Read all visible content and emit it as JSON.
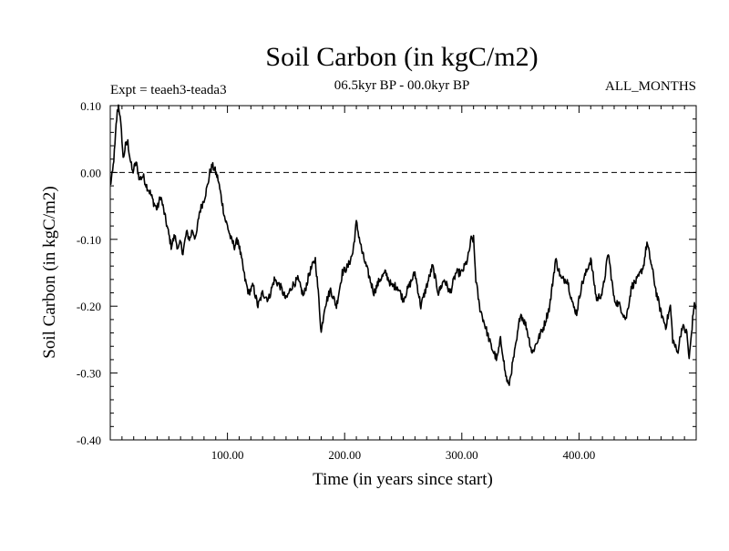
{
  "chart_data": {
    "type": "line",
    "title": "Soil Carbon (in kgC/m2)",
    "subtitle": "06.5kyr BP - 00.0kyr BP",
    "experiment": "Expt = teaeh3-teada3",
    "period": "ALL_MONTHS",
    "xlabel": "Time (in years since start)",
    "ylabel": "Soil Carbon (in kgC/m2)",
    "xlim": [
      0,
      500
    ],
    "ylim": [
      -0.4,
      0.1
    ],
    "xticks": [
      100,
      200,
      300,
      400
    ],
    "xtick_labels": [
      "100.00",
      "200.00",
      "300.00",
      "400.00"
    ],
    "yticks": [
      0.1,
      0.0,
      -0.1,
      -0.2,
      -0.3,
      -0.4
    ],
    "ytick_labels": [
      "0.10",
      "0.00",
      "-0.10",
      "-0.20",
      "-0.30",
      "-0.40"
    ],
    "reference_line": 0.0,
    "series": [
      {
        "name": "Soil Carbon",
        "x": [
          0,
          2,
          4,
          5,
          6,
          7,
          8,
          10,
          11,
          13,
          15,
          17,
          19,
          22,
          25,
          28,
          31,
          34,
          37,
          40,
          43,
          46,
          49,
          52,
          55,
          58,
          60,
          62,
          65,
          68,
          70,
          73,
          76,
          80,
          83,
          85,
          87,
          89,
          92,
          95,
          98,
          100,
          103,
          106,
          109,
          112,
          115,
          118,
          122,
          126,
          130,
          135,
          140,
          145,
          150,
          155,
          160,
          165,
          170,
          175,
          178,
          180,
          183,
          188,
          193,
          198,
          203,
          207,
          210,
          215,
          220,
          225,
          230,
          235,
          240,
          245,
          250,
          255,
          260,
          265,
          270,
          275,
          280,
          285,
          290,
          295,
          300,
          305,
          308,
          310,
          312,
          315,
          320,
          325,
          330,
          333,
          335,
          337,
          340,
          343,
          347,
          350,
          355,
          360,
          365,
          370,
          375,
          380,
          385,
          390,
          395,
          398,
          402,
          406,
          410,
          415,
          420,
          425,
          430,
          435,
          440,
          445,
          450,
          455,
          458,
          462,
          466,
          470,
          474,
          478,
          480,
          484,
          488,
          492,
          494,
          496,
          498,
          500
        ],
        "values": [
          -0.02,
          0.0,
          0.04,
          0.07,
          0.09,
          0.1,
          0.09,
          0.05,
          0.02,
          0.04,
          0.045,
          0.02,
          0.0,
          0.015,
          -0.01,
          -0.005,
          -0.02,
          -0.03,
          -0.045,
          -0.055,
          -0.035,
          -0.06,
          -0.085,
          -0.11,
          -0.095,
          -0.115,
          -0.105,
          -0.12,
          -0.09,
          -0.1,
          -0.085,
          -0.1,
          -0.06,
          -0.04,
          -0.02,
          -0.0,
          0.01,
          0.005,
          -0.01,
          -0.04,
          -0.07,
          -0.08,
          -0.1,
          -0.11,
          -0.1,
          -0.13,
          -0.16,
          -0.18,
          -0.17,
          -0.2,
          -0.18,
          -0.19,
          -0.16,
          -0.17,
          -0.19,
          -0.17,
          -0.16,
          -0.185,
          -0.15,
          -0.13,
          -0.19,
          -0.24,
          -0.2,
          -0.175,
          -0.2,
          -0.15,
          -0.14,
          -0.12,
          -0.075,
          -0.12,
          -0.15,
          -0.18,
          -0.16,
          -0.15,
          -0.17,
          -0.17,
          -0.19,
          -0.17,
          -0.15,
          -0.2,
          -0.17,
          -0.14,
          -0.18,
          -0.16,
          -0.18,
          -0.15,
          -0.15,
          -0.13,
          -0.1,
          -0.1,
          -0.16,
          -0.2,
          -0.23,
          -0.26,
          -0.28,
          -0.25,
          -0.27,
          -0.3,
          -0.32,
          -0.29,
          -0.25,
          -0.21,
          -0.23,
          -0.27,
          -0.25,
          -0.23,
          -0.2,
          -0.13,
          -0.16,
          -0.16,
          -0.2,
          -0.21,
          -0.17,
          -0.15,
          -0.13,
          -0.19,
          -0.18,
          -0.12,
          -0.19,
          -0.2,
          -0.22,
          -0.17,
          -0.16,
          -0.14,
          -0.105,
          -0.14,
          -0.18,
          -0.21,
          -0.23,
          -0.2,
          -0.25,
          -0.27,
          -0.23,
          -0.24,
          -0.28,
          -0.24,
          -0.2,
          -0.2
        ]
      }
    ]
  }
}
